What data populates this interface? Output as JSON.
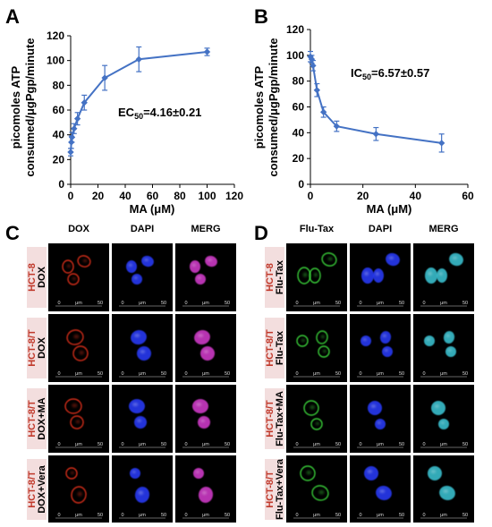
{
  "panels": {
    "A": "A",
    "B": "B",
    "C": "C",
    "D": "D"
  },
  "chart_data": [
    {
      "type": "line",
      "panel": "A",
      "ylabel_line1": "picomoles ATP",
      "ylabel_line2": "consumed/μgPgp/minute",
      "xlabel": "MA (μM)",
      "xlim": [
        0,
        120
      ],
      "ylim": [
        0,
        120
      ],
      "xticks": [
        0,
        20,
        40,
        60,
        80,
        100,
        120
      ],
      "yticks": [
        0,
        20,
        40,
        60,
        80,
        100,
        120
      ],
      "annotation_main": "EC",
      "annotation_sub": "50",
      "annotation_value": "=4.16±0.21",
      "color": "#4472C4",
      "grid": false,
      "x": [
        0,
        0.5,
        1,
        2.5,
        5,
        10,
        25,
        50,
        100
      ],
      "y": [
        26,
        34,
        38,
        45,
        53,
        66,
        86,
        101,
        107
      ],
      "err": [
        3,
        5,
        4,
        4,
        5,
        6,
        10,
        10,
        3
      ]
    },
    {
      "type": "line",
      "panel": "B",
      "ylabel_line1": "picomoles ATP",
      "ylabel_line2": "consumed/μgPgp/minute",
      "xlabel": "MA (μM)",
      "xlim": [
        0,
        60
      ],
      "ylim": [
        0,
        120
      ],
      "xticks": [
        0,
        20,
        40,
        60
      ],
      "yticks": [
        0,
        20,
        40,
        60,
        80,
        100,
        120
      ],
      "annotation_main": "IC",
      "annotation_sub": "50",
      "annotation_value": "=6.57±0.57",
      "color": "#4472C4",
      "grid": false,
      "x": [
        0,
        0.5,
        1,
        2.5,
        5,
        10,
        25,
        50
      ],
      "y": [
        99,
        97,
        92,
        73,
        56,
        45,
        39,
        32
      ],
      "err": [
        4,
        3,
        4,
        5,
        4,
        4,
        5,
        7
      ]
    }
  ],
  "micrographs": {
    "C": {
      "columns": [
        "DOX",
        "DAPI",
        "MERG"
      ],
      "rows": [
        {
          "cell": "HCT-8",
          "treatment": "DOX"
        },
        {
          "cell": "HCT-8/T",
          "treatment": "DOX"
        },
        {
          "cell": "HCT-8/T",
          "treatment": "DOX+MA"
        },
        {
          "cell": "HCT-8/T",
          "treatment": "DOX+Vera"
        }
      ],
      "scale_labels": [
        "0",
        "μm",
        "50"
      ]
    },
    "D": {
      "columns": [
        "Flu-Tax",
        "DAPI",
        "MERG"
      ],
      "rows": [
        {
          "cell": "HCT-8",
          "treatment": "Flu-Tax"
        },
        {
          "cell": "HCT-8/T",
          "treatment": "Flu-Tax"
        },
        {
          "cell": "HCT-8/T",
          "treatment": "Flu-Tax+MA"
        },
        {
          "cell": "HCT-8/T",
          "treatment": "Flu-Tax+Vera"
        }
      ],
      "scale_labels": [
        "0",
        "μm",
        "50"
      ]
    }
  },
  "colors": {
    "series": "#4472C4",
    "cell_label": "#c0392b",
    "label_box": "#f3dede",
    "dox": "#e0301e",
    "dapi": "#2a3cff",
    "merg_c": "#d83cd0",
    "flutax": "#3cd83c",
    "merg_d": "#3cc8d8"
  }
}
